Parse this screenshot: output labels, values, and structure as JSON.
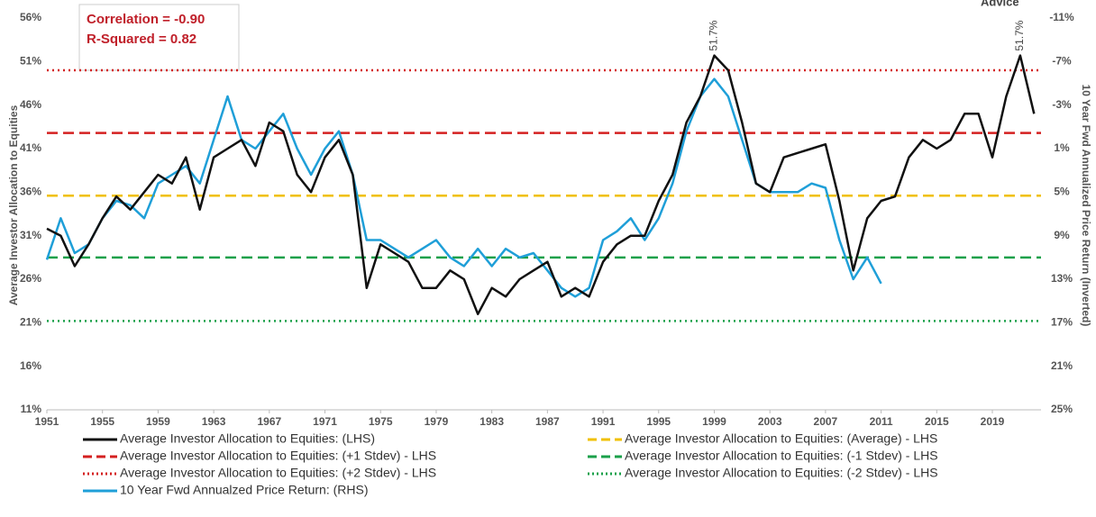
{
  "chart_data": {
    "type": "line",
    "logo_text": "Advice",
    "annotations": [
      {
        "text": "Correlation = -0.90"
      },
      {
        "text": "R-Squared = 0.82"
      }
    ],
    "point_labels": [
      {
        "text": "51.7%",
        "x": 1999,
        "y": 51.7
      },
      {
        "text": "51.7%",
        "x": 2021,
        "y": 51.7
      }
    ],
    "y_label": "Average Investor Allocation to Equities",
    "y2_label": "10 Year Fwd Annualized Price Return (Inverted)",
    "xlim": [
      1951,
      2022.5
    ],
    "xticks": [
      1951,
      1955,
      1959,
      1963,
      1967,
      1971,
      1975,
      1979,
      1983,
      1987,
      1991,
      1995,
      1999,
      2003,
      2007,
      2011,
      2015,
      2019
    ],
    "ylim": [
      11,
      56
    ],
    "yticks": [
      {
        "value": 11,
        "label": "11%"
      },
      {
        "value": 16,
        "label": "16%"
      },
      {
        "value": 21,
        "label": "21%"
      },
      {
        "value": 26,
        "label": "26%"
      },
      {
        "value": 31,
        "label": "31%"
      },
      {
        "value": 36,
        "label": "36%"
      },
      {
        "value": 41,
        "label": "41%"
      },
      {
        "value": 46,
        "label": "46%"
      },
      {
        "value": 51,
        "label": "51%"
      },
      {
        "value": 56,
        "label": "56%"
      }
    ],
    "y2lim": [
      -11,
      25
    ],
    "y2_inverted": true,
    "y2ticks": [
      {
        "value": -11,
        "label": "-11%"
      },
      {
        "value": -7,
        "label": "-7%"
      },
      {
        "value": -3,
        "label": "-3%"
      },
      {
        "value": 1,
        "label": "1%"
      },
      {
        "value": 5,
        "label": "5%"
      },
      {
        "value": 9,
        "label": "9%"
      },
      {
        "value": 13,
        "label": "13%"
      },
      {
        "value": 17,
        "label": "17%"
      },
      {
        "value": 21,
        "label": "21%"
      },
      {
        "value": 25,
        "label": "25%"
      }
    ],
    "x": [
      1951,
      1952,
      1953,
      1954,
      1955,
      1956,
      1957,
      1958,
      1959,
      1960,
      1961,
      1962,
      1963,
      1964,
      1965,
      1966,
      1967,
      1968,
      1969,
      1970,
      1971,
      1972,
      1973,
      1974,
      1975,
      1976,
      1977,
      1978,
      1979,
      1980,
      1981,
      1982,
      1983,
      1984,
      1985,
      1986,
      1987,
      1988,
      1989,
      1990,
      1991,
      1992,
      1993,
      1994,
      1995,
      1996,
      1997,
      1998,
      1999,
      2000,
      2001,
      2002,
      2003,
      2004,
      2005,
      2006,
      2007,
      2008,
      2009,
      2010,
      2011,
      2012,
      2013,
      2014,
      2015,
      2016,
      2017,
      2018,
      2019,
      2020,
      2021,
      2022
    ],
    "series": [
      {
        "name": "Average Investor Allocation to Equities: (LHS)",
        "color": "#111111",
        "axis": "y",
        "values": [
          31.8,
          31,
          27.5,
          30,
          33,
          35.5,
          34,
          36,
          38,
          37,
          40,
          34,
          40,
          41,
          42,
          39,
          44,
          43,
          38,
          36,
          40,
          42,
          38,
          25,
          30,
          29,
          28,
          25,
          25,
          27,
          26,
          22,
          25,
          24,
          26,
          27,
          28,
          24,
          25,
          24,
          28,
          30,
          31,
          31,
          35,
          38,
          44,
          47,
          51.7,
          50,
          44,
          37,
          36,
          40,
          40.5,
          41,
          41.5,
          35,
          27,
          33,
          35,
          35.5,
          40,
          42,
          41,
          42,
          45,
          45,
          40,
          47,
          51.7,
          45
        ]
      },
      {
        "name": "10 Year Fwd Annualzed Price Return: (RHS)",
        "color": "#1f9fd8",
        "axis": "y2",
        "values": [
          11.2,
          7.4,
          10.6,
          9.8,
          7.4,
          5.8,
          6.2,
          7.4,
          4.2,
          3.4,
          2.6,
          4.2,
          0.2,
          -3.8,
          0.2,
          1.0,
          -0.6,
          -2.2,
          1.0,
          3.4,
          1.0,
          -0.6,
          3.4,
          9.4,
          9.4,
          10.2,
          11.0,
          10.2,
          9.4,
          11.0,
          11.8,
          10.2,
          11.8,
          10.2,
          11.0,
          10.6,
          12.2,
          13.8,
          14.6,
          13.8,
          9.4,
          8.6,
          7.4,
          9.4,
          7.4,
          4.2,
          -0.6,
          -3.8,
          -5.4,
          -3.8,
          0.2,
          4.2,
          5.0,
          5.0,
          5.0,
          4.2,
          4.6,
          9.4,
          13.0,
          11.0,
          13.4,
          null,
          null,
          null,
          null,
          null,
          null,
          null,
          null,
          null,
          null,
          null
        ]
      }
    ],
    "reference_lines": [
      {
        "name": "Average Investor Allocation to Equities: (Average) - LHS",
        "color": "#f0c000",
        "style": "dashed",
        "value": 35.6
      },
      {
        "name": "Average Investor Allocation to Equities: (+1 Stdev) - LHS",
        "color": "#d42020",
        "style": "dashed",
        "value": 42.8
      },
      {
        "name": "Average Investor Allocation to Equities: (-1 Stdev) - LHS",
        "color": "#1aa04a",
        "style": "dashed",
        "value": 28.5
      },
      {
        "name": "Average Investor Allocation to Equities: (+2 Stdev) - LHS",
        "color": "#d42020",
        "style": "dotted",
        "value": 50.0
      },
      {
        "name": "Average Investor Allocation to Equities: (-2 Stdev) - LHS",
        "color": "#1aa04a",
        "style": "dotted",
        "value": 21.2
      }
    ]
  }
}
